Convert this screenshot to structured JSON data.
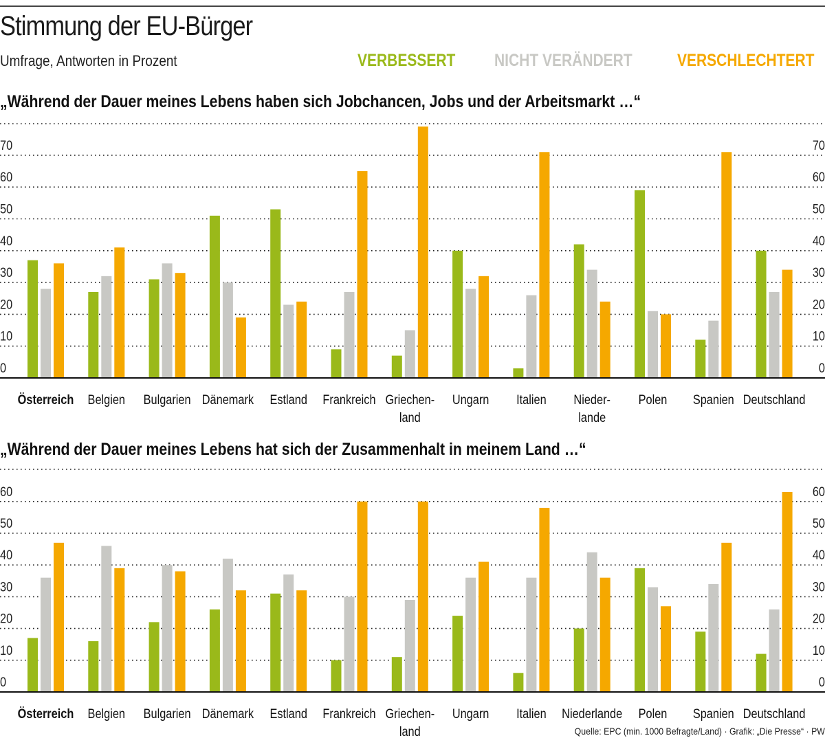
{
  "header": {
    "title": "Stimmung der EU-Bürger",
    "subtitle": "Umfrage, Antworten in Prozent"
  },
  "legend": [
    {
      "label": "VERBESSERT",
      "color": "#9ab91a"
    },
    {
      "label": "NICHT VERÄNDERT",
      "color": "#c8c8c4"
    },
    {
      "label": "VERSCHLECHTERT",
      "color": "#f5a800"
    }
  ],
  "source": "Quelle: EPC (min. 1000 Befragte/Land) · Grafik: „Die Presse“ · PW",
  "chart_data": [
    {
      "type": "bar",
      "title": "„Während der Dauer meines Lebens haben sich Jobchancen, Jobs und der Arbeitsmarkt …“",
      "xlabel": "",
      "ylabel": "Prozent",
      "ylim": [
        0,
        80
      ],
      "yticks": [
        0,
        10,
        20,
        30,
        40,
        50,
        60,
        70
      ],
      "grid": true,
      "legend_position": "top-right",
      "categories": [
        [
          "Österreich"
        ],
        [
          "Belgien"
        ],
        [
          "Bulgarien"
        ],
        [
          "Dänemark"
        ],
        [
          "Estland"
        ],
        [
          "Frankreich"
        ],
        [
          "Griechen-",
          "land"
        ],
        [
          "Ungarn"
        ],
        [
          "Italien"
        ],
        [
          "Nieder-",
          "lande"
        ],
        [
          "Polen"
        ],
        [
          "Spanien"
        ],
        [
          "Deutschland"
        ]
      ],
      "highlight_category": "Österreich",
      "series": [
        {
          "name": "Verbessert",
          "color": "#9ab91a",
          "values": [
            37,
            27,
            31,
            51,
            53,
            9,
            7,
            40,
            3,
            42,
            59,
            12,
            40
          ]
        },
        {
          "name": "Nicht verändert",
          "color": "#c8c8c4",
          "values": [
            28,
            32,
            36,
            30,
            23,
            27,
            15,
            28,
            26,
            34,
            21,
            18,
            27
          ]
        },
        {
          "name": "Verschlechtert",
          "color": "#f5a800",
          "values": [
            36,
            41,
            33,
            19,
            24,
            65,
            79,
            32,
            71,
            24,
            20,
            71,
            34
          ]
        }
      ]
    },
    {
      "type": "bar",
      "title": "„Während der Dauer meines Lebens hat sich der Zusammenhalt in meinem Land …“",
      "xlabel": "",
      "ylabel": "Prozent",
      "ylim": [
        0,
        70
      ],
      "yticks": [
        0,
        10,
        20,
        30,
        40,
        50,
        60
      ],
      "grid": true,
      "legend_position": "top-right",
      "categories": [
        [
          "Österreich"
        ],
        [
          "Belgien"
        ],
        [
          "Bulgarien"
        ],
        [
          "Dänemark"
        ],
        [
          "Estland"
        ],
        [
          "Frankreich"
        ],
        [
          "Griechen-",
          "land"
        ],
        [
          "Ungarn"
        ],
        [
          "Italien"
        ],
        [
          "Niederlande"
        ],
        [
          "Polen"
        ],
        [
          "Spanien"
        ],
        [
          "Deutschland"
        ]
      ],
      "highlight_category": "Österreich",
      "series": [
        {
          "name": "Verbessert",
          "color": "#9ab91a",
          "values": [
            17,
            16,
            22,
            26,
            31,
            10,
            11,
            24,
            6,
            20,
            39,
            19,
            12
          ]
        },
        {
          "name": "Nicht verändert",
          "color": "#c8c8c4",
          "values": [
            36,
            46,
            40,
            42,
            37,
            30,
            29,
            36,
            36,
            44,
            33,
            34,
            26
          ]
        },
        {
          "name": "Verschlechtert",
          "color": "#f5a800",
          "values": [
            47,
            39,
            38,
            32,
            32,
            60,
            60,
            41,
            58,
            36,
            27,
            47,
            63
          ]
        }
      ]
    }
  ]
}
